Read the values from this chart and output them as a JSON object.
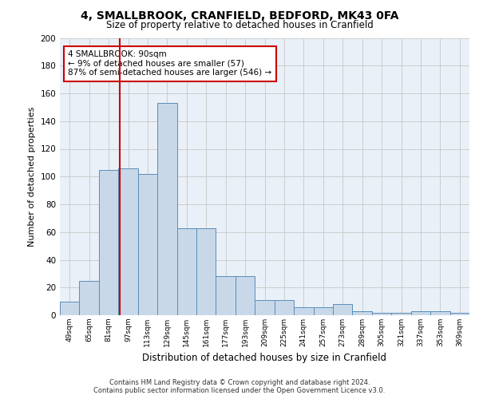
{
  "title1": "4, SMALLBROOK, CRANFIELD, BEDFORD, MK43 0FA",
  "title2": "Size of property relative to detached houses in Cranfield",
  "xlabel": "Distribution of detached houses by size in Cranfield",
  "ylabel": "Number of detached properties",
  "categories": [
    "49sqm",
    "65sqm",
    "81sqm",
    "97sqm",
    "113sqm",
    "129sqm",
    "145sqm",
    "161sqm",
    "177sqm",
    "193sqm",
    "209sqm",
    "225sqm",
    "241sqm",
    "257sqm",
    "273sqm",
    "289sqm",
    "305sqm",
    "321sqm",
    "337sqm",
    "353sqm",
    "369sqm"
  ],
  "values": [
    10,
    25,
    105,
    106,
    102,
    153,
    63,
    63,
    28,
    28,
    11,
    11,
    6,
    6,
    8,
    3,
    2,
    2,
    3,
    3,
    2
  ],
  "bar_color": "#c8d8e8",
  "bar_edge_color": "#5b8db8",
  "grid_color": "#cccccc",
  "bg_color": "#eaf0f8",
  "annotation_box_text": "4 SMALLBROOK: 90sqm\n← 9% of detached houses are smaller (57)\n87% of semi-detached houses are larger (546) →",
  "annotation_box_color": "#ffffff",
  "annotation_box_edge_color": "#cc0000",
  "vline_color": "#cc0000",
  "vline_x": 2.56,
  "footer1": "Contains HM Land Registry data © Crown copyright and database right 2024.",
  "footer2": "Contains public sector information licensed under the Open Government Licence v3.0.",
  "ylim": [
    0,
    200
  ],
  "yticks": [
    0,
    20,
    40,
    60,
    80,
    100,
    120,
    140,
    160,
    180,
    200
  ]
}
